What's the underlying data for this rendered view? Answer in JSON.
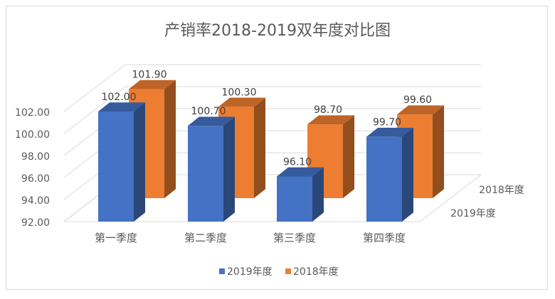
{
  "chart_data": {
    "type": "bar",
    "title": "产销率2018-2019双年度对比图",
    "categories": [
      "第一季度",
      "第二季度",
      "第三季度",
      "第四季度"
    ],
    "series": [
      {
        "name": "2019年度",
        "values": [
          102.0,
          100.7,
          96.1,
          99.7
        ],
        "labels": [
          "102.00",
          "100.70",
          "96.10",
          "99.70"
        ],
        "color": "#4472c4"
      },
      {
        "name": "2018年度",
        "values": [
          101.9,
          100.3,
          98.7,
          99.6
        ],
        "labels": [
          "101.90",
          "100.30",
          "98.70",
          "99.60"
        ],
        "color": "#ed7d31"
      }
    ],
    "ylim": [
      92,
      102
    ],
    "yticks": [
      "92.00",
      "94.00",
      "96.00",
      "98.00",
      "100.00",
      "102.00"
    ],
    "depth_axis_labels": [
      "2018年度",
      "2019年度"
    ],
    "legend": [
      "2019年度",
      "2018年度"
    ],
    "legend_position": "bottom",
    "grid": true,
    "style": "3d-column"
  }
}
